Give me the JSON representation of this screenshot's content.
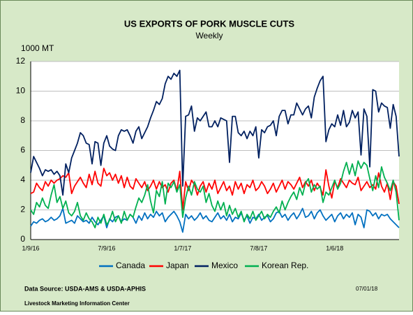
{
  "chart_data": {
    "type": "line",
    "title": "US EXPORTS OF PORK MUSCLE CUTS",
    "subtitle": "Weekly",
    "y_label": "1000 MT",
    "source": "Data Source:  USDA-AMS & USDA-APHIS",
    "footer": "Livestock Marketing Information Center",
    "date": "07/01/18",
    "categories": [
      "1/9/16",
      null,
      null,
      null,
      null,
      null,
      null,
      null,
      null,
      null,
      null,
      null,
      null,
      null,
      null,
      null,
      null,
      null,
      null,
      null,
      null,
      null,
      null,
      null,
      null,
      null,
      "7/9/16",
      null,
      null,
      null,
      null,
      null,
      null,
      null,
      null,
      null,
      null,
      null,
      null,
      null,
      null,
      null,
      null,
      null,
      null,
      null,
      null,
      null,
      null,
      null,
      null,
      null,
      "1/7/17",
      null,
      null,
      null,
      null,
      null,
      null,
      null,
      null,
      null,
      null,
      null,
      null,
      null,
      null,
      null,
      null,
      null,
      null,
      null,
      null,
      null,
      null,
      null,
      null,
      null,
      "7/8/17",
      null,
      null,
      null,
      null,
      null,
      null,
      null,
      null,
      null,
      null,
      null,
      null,
      null,
      null,
      null,
      null,
      null,
      null,
      null,
      null,
      null,
      null,
      null,
      null,
      null,
      "1/6/18",
      null,
      null,
      null,
      null,
      null,
      null,
      null,
      null,
      null,
      null,
      null,
      null,
      null,
      null,
      null,
      null,
      null,
      null,
      null,
      null,
      null,
      null
    ],
    "series": [
      {
        "name": "Canada",
        "color": "#0070c0",
        "values": [
          0.9,
          1.2,
          1.1,
          1.3,
          1.4,
          1.2,
          1.3,
          1.5,
          1.3,
          1.4,
          1.6,
          2.1,
          1.1,
          1.2,
          1.3,
          1.1,
          1.6,
          1.4,
          1.2,
          1.3,
          1.1,
          1.5,
          1.2,
          1.0,
          1.3,
          1.6,
          0.8,
          1.4,
          1.2,
          1.5,
          1.6,
          1.2,
          1.4,
          1.3,
          1.7,
          1.5,
          1.1,
          1.6,
          1.3,
          1.8,
          1.4,
          1.7,
          1.5,
          1.9,
          1.6,
          1.8,
          1.2,
          1.5,
          1.7,
          1.9,
          1.6,
          1.2,
          0.5,
          1.7,
          1.4,
          1.6,
          1.3,
          1.5,
          1.8,
          1.4,
          1.6,
          1.3,
          1.2,
          1.5,
          1.8,
          1.4,
          1.6,
          1.3,
          1.7,
          1.2,
          1.5,
          1.4,
          1.8,
          1.3,
          1.6,
          1.1,
          1.5,
          1.4,
          1.7,
          1.3,
          1.5,
          1.6,
          1.2,
          1.4,
          1.8,
          1.9,
          1.5,
          1.7,
          1.3,
          1.6,
          1.8,
          1.4,
          1.7,
          2.1,
          1.5,
          1.6,
          1.9,
          1.4,
          1.8,
          2.0,
          1.6,
          1.3,
          1.5,
          1.7,
          1.2,
          1.6,
          1.8,
          1.4,
          1.7,
          1.5,
          1.8,
          1.0,
          1.7,
          1.5,
          0.8,
          2.0,
          1.9,
          1.6,
          1.8,
          1.4,
          1.7,
          1.6,
          1.7,
          1.4,
          1.2,
          1.0,
          0.8
        ]
      },
      {
        "name": "Japan",
        "color": "#ff0000",
        "values": [
          3.1,
          3.2,
          3.8,
          3.5,
          3.3,
          3.9,
          3.6,
          4.0,
          3.8,
          4.0,
          4.1,
          4.3,
          4.2,
          4.5,
          3.1,
          3.6,
          3.9,
          4.2,
          3.8,
          3.5,
          4.4,
          3.7,
          4.6,
          3.8,
          3.6,
          4.8,
          4.3,
          4.5,
          4.0,
          4.4,
          3.8,
          4.3,
          3.5,
          4.2,
          3.6,
          3.4,
          4.1,
          3.8,
          3.5,
          3.9,
          3.3,
          3.6,
          4.0,
          3.4,
          3.9,
          3.5,
          3.7,
          3.2,
          3.8,
          4.0,
          3.3,
          4.6,
          2.0,
          3.9,
          3.3,
          4.0,
          3.7,
          3.0,
          3.6,
          3.9,
          3.2,
          3.8,
          3.4,
          4.0,
          3.1,
          3.5,
          3.9,
          3.3,
          3.6,
          3.0,
          3.9,
          3.4,
          3.8,
          3.1,
          3.7,
          3.5,
          4.0,
          3.3,
          3.5,
          3.9,
          3.6,
          3.1,
          3.4,
          3.8,
          3.2,
          3.6,
          4.0,
          3.4,
          3.9,
          3.7,
          3.4,
          3.8,
          4.2,
          3.5,
          3.9,
          3.6,
          4.0,
          3.3,
          3.8,
          3.5,
          3.0,
          4.7,
          3.6,
          2.8,
          3.9,
          3.5,
          4.1,
          3.8,
          3.5,
          4.0,
          3.8,
          3.7,
          4.2,
          3.3,
          3.6,
          3.9,
          3.5,
          3.7,
          3.4,
          4.5,
          3.6,
          3.2,
          3.8,
          2.7,
          3.9,
          3.6,
          2.4
        ]
      },
      {
        "name": "Mexico",
        "color": "#002060",
        "values": [
          4.5,
          5.6,
          5.2,
          4.8,
          4.3,
          4.7,
          4.6,
          4.7,
          4.4,
          4.6,
          4.3,
          3.0,
          5.1,
          4.5,
          5.5,
          6.0,
          6.5,
          7.2,
          7.0,
          6.5,
          6.4,
          5.1,
          6.6,
          6.5,
          5.0,
          6.5,
          7.0,
          6.3,
          6.1,
          6.0,
          7.0,
          7.4,
          7.3,
          7.4,
          7.0,
          6.5,
          7.3,
          7.6,
          6.8,
          7.2,
          7.6,
          8.2,
          8.7,
          9.3,
          9.1,
          9.5,
          10.5,
          11.0,
          10.8,
          11.2,
          11.0,
          11.4,
          3.6,
          8.3,
          8.4,
          9.0,
          7.3,
          8.2,
          8.0,
          8.3,
          8.6,
          7.6,
          7.6,
          8.0,
          7.6,
          8.2,
          8.1,
          8.0,
          5.2,
          8.3,
          8.3,
          7.2,
          7.0,
          7.3,
          6.8,
          7.3,
          7.0,
          7.6,
          5.5,
          7.4,
          7.2,
          7.6,
          7.7,
          8.0,
          7.0,
          8.3,
          8.7,
          8.7,
          7.8,
          8.4,
          8.4,
          9.2,
          8.8,
          8.4,
          8.8,
          9.0,
          8.2,
          9.6,
          10.2,
          10.7,
          11.0,
          6.6,
          7.4,
          7.8,
          7.6,
          8.4,
          7.7,
          8.7,
          7.6,
          7.9,
          8.7,
          8.2,
          8.6,
          5.7,
          8.8,
          8.3,
          4.9,
          10.1,
          10.0,
          8.6,
          9.2,
          9.0,
          8.9,
          7.5,
          9.1,
          8.3,
          5.6
        ]
      },
      {
        "name": "Korean Rep.",
        "color": "#00b050",
        "values": [
          2.0,
          1.7,
          2.5,
          2.2,
          2.8,
          2.3,
          2.1,
          3.0,
          3.7,
          2.5,
          2.9,
          2.1,
          2.6,
          1.8,
          1.6,
          1.9,
          2.5,
          1.6,
          1.3,
          1.8,
          1.4,
          1.2,
          0.8,
          1.5,
          1.1,
          1.7,
          1.0,
          1.3,
          1.9,
          1.2,
          1.6,
          1.1,
          1.9,
          1.3,
          1.7,
          1.5,
          2.2,
          2.8,
          2.5,
          3.0,
          3.7,
          2.6,
          1.8,
          3.3,
          2.9,
          3.9,
          2.4,
          3.8,
          3.5,
          3.9,
          3.2,
          3.7,
          1.5,
          2.8,
          3.6,
          3.0,
          3.9,
          3.4,
          3.2,
          3.6,
          2.5,
          3.1,
          2.3,
          1.9,
          2.6,
          2.0,
          2.5,
          1.6,
          2.3,
          1.7,
          2.1,
          1.5,
          1.9,
          1.2,
          1.7,
          1.4,
          1.9,
          1.3,
          1.6,
          1.9,
          1.4,
          1.7,
          1.5,
          1.9,
          2.2,
          1.8,
          2.6,
          2.0,
          2.5,
          2.9,
          3.2,
          2.7,
          3.5,
          3.0,
          3.8,
          4.1,
          3.2,
          3.7,
          3.4,
          3.6,
          2.5,
          3.2,
          3.0,
          3.5,
          4.0,
          3.4,
          3.8,
          4.6,
          5.2,
          4.4,
          5.1,
          4.3,
          5.3,
          4.8,
          5.2,
          5.0,
          4.1,
          3.3,
          4.3,
          3.5,
          4.9,
          4.2,
          3.8,
          3.3,
          4.0,
          3.2,
          1.3
        ]
      }
    ],
    "ylim": [
      0,
      12
    ],
    "yticks": [
      0,
      2,
      4,
      6,
      8,
      10,
      12
    ],
    "grid": true
  }
}
